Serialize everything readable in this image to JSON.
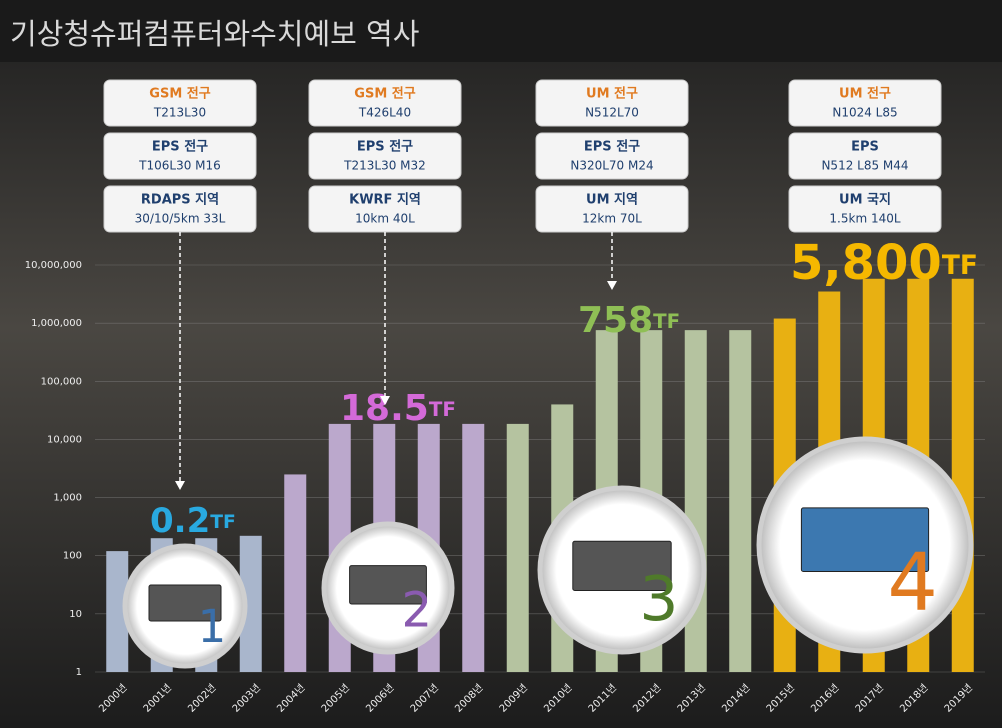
{
  "chart_data": {
    "type": "bar",
    "title": "기상청슈퍼컴퓨터와수치예보 역사",
    "categories": [
      "2000년",
      "2001년",
      "2002년",
      "2003년",
      "2004년",
      "2005년",
      "2006년",
      "2007년",
      "2008년",
      "2009년",
      "2010년",
      "2011년",
      "2012년",
      "2013년",
      "2014년",
      "2015년",
      "2016년",
      "2017년",
      "2018년",
      "2019년"
    ],
    "values": [
      120,
      200,
      200,
      220,
      2500,
      18500,
      18500,
      18500,
      18500,
      18500,
      40000,
      758000,
      758000,
      758000,
      758000,
      1200000,
      3500000,
      5800000,
      5800000,
      5800000
    ],
    "colors": [
      "#a9b6cc",
      "#a9b6cc",
      "#a9b6cc",
      "#a9b6cc",
      "#bba8cc",
      "#bba8cc",
      "#bba8cc",
      "#bba8cc",
      "#bba8cc",
      "#b5c3a0",
      "#b5c3a0",
      "#b5c3a0",
      "#b5c3a0",
      "#b5c3a0",
      "#b5c3a0",
      "#e8b012",
      "#e8b012",
      "#e8b012",
      "#e8b012",
      "#e8b012"
    ],
    "log_scale": true,
    "grid": true,
    "ylim": [
      1,
      10000000
    ],
    "yticks": [
      1,
      10,
      100,
      {
        "value": 1000,
        "label": "1,000"
      },
      {
        "value": 10000,
        "label": "10,000"
      },
      {
        "value": 100000,
        "label": "100,000"
      },
      {
        "value": 1000000,
        "label": "1,000,000"
      },
      {
        "value": 10000000,
        "label": "10,000,000"
      }
    ],
    "annotations": [
      {
        "value": "0.2",
        "unit": "TF"
      },
      {
        "value": "18.5",
        "unit": "TF"
      },
      {
        "value": "758",
        "unit": "TF"
      },
      {
        "value": "5,800",
        "unit": "TF"
      }
    ],
    "badges": [
      "1",
      "2",
      "3",
      "4"
    ],
    "models": [
      [
        {
          "name": "GSM 전구",
          "spec": "T213L30"
        },
        {
          "name": "EPS 전구",
          "spec": "T106L30 M16"
        },
        {
          "name": "RDAPS 지역",
          "spec": "30/10/5km 33L"
        }
      ],
      [
        {
          "name": "GSM 전구",
          "spec": "T426L40"
        },
        {
          "name": "EPS 전구",
          "spec": "T213L30 M32"
        },
        {
          "name": "KWRF 지역",
          "spec": "10km 40L"
        }
      ],
      [
        {
          "name": "UM 전구",
          "spec": "N512L70"
        },
        {
          "name": "EPS 전구",
          "spec": "N320L70 M24"
        },
        {
          "name": "UM 지역",
          "spec": "12km 70L"
        }
      ],
      [
        {
          "name": "UM 전구",
          "spec": "N1024 L85"
        },
        {
          "name": "EPS",
          "spec": "N512 L85 M44"
        },
        {
          "name": "UM 국지",
          "spec": "1.5km 140L"
        }
      ]
    ]
  }
}
